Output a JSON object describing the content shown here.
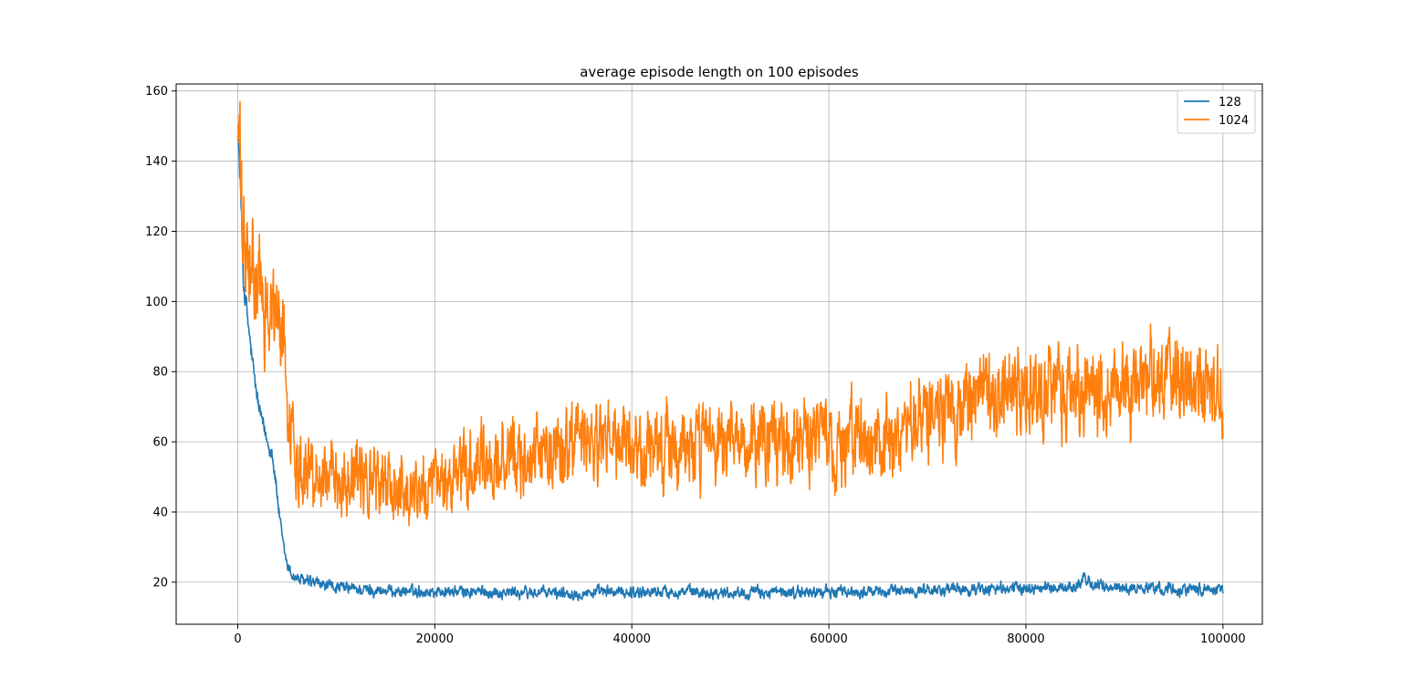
{
  "chart_data": {
    "type": "line",
    "title": "average episode length on 100 episodes",
    "xlabel": "",
    "ylabel": "",
    "xlim": [
      -6250,
      104000
    ],
    "ylim": [
      8,
      162
    ],
    "xticks": [
      0,
      20000,
      40000,
      60000,
      80000,
      100000
    ],
    "yticks": [
      20,
      40,
      60,
      80,
      100,
      120,
      140,
      160
    ],
    "grid": true,
    "legend_position": "top-right",
    "series": [
      {
        "name": "128",
        "color": "#1f77b4",
        "noise": 1.6,
        "x": [
          0,
          300,
          600,
          1000,
          1500,
          2000,
          2500,
          3000,
          3500,
          4000,
          4500,
          5000,
          5500,
          6000,
          7000,
          8000,
          9000,
          10000,
          11000,
          12000,
          15000,
          20000,
          25000,
          30000,
          35000,
          40000,
          45000,
          50000,
          55000,
          60000,
          65000,
          70000,
          75000,
          80000,
          85000,
          86000,
          87000,
          88000,
          90000,
          95000,
          100000
        ],
        "y": [
          150,
          130,
          105,
          95,
          82,
          72,
          65,
          60,
          57,
          45,
          32,
          25,
          22,
          21,
          20,
          19.5,
          19,
          18.5,
          18.3,
          18,
          17.5,
          17.3,
          17.2,
          17,
          17,
          17.2,
          17.3,
          17.1,
          17,
          17.2,
          17.3,
          17.8,
          18,
          18.3,
          18.5,
          21,
          19,
          18.5,
          18.3,
          18.2,
          18
        ]
      },
      {
        "name": "1024",
        "color": "#ff7f0e",
        "noise": 7,
        "x": [
          0,
          200,
          500,
          1000,
          2000,
          3000,
          4000,
          4500,
          5000,
          5500,
          6000,
          7000,
          8000,
          10000,
          12000,
          15000,
          17000,
          20000,
          23000,
          25000,
          28000,
          30000,
          35000,
          40000,
          45000,
          50000,
          55000,
          60000,
          65000,
          67000,
          70000,
          75000,
          80000,
          85000,
          90000,
          95000,
          98000,
          100000
        ],
        "y": [
          152,
          140,
          118,
          108,
          103,
          100,
          96,
          92,
          75,
          62,
          55,
          53,
          52,
          50,
          50,
          48,
          46,
          47,
          50,
          53,
          55,
          57,
          60,
          57,
          58,
          58,
          60,
          60,
          61,
          59,
          70,
          72,
          74,
          75,
          77,
          80,
          76,
          72
        ]
      }
    ]
  }
}
